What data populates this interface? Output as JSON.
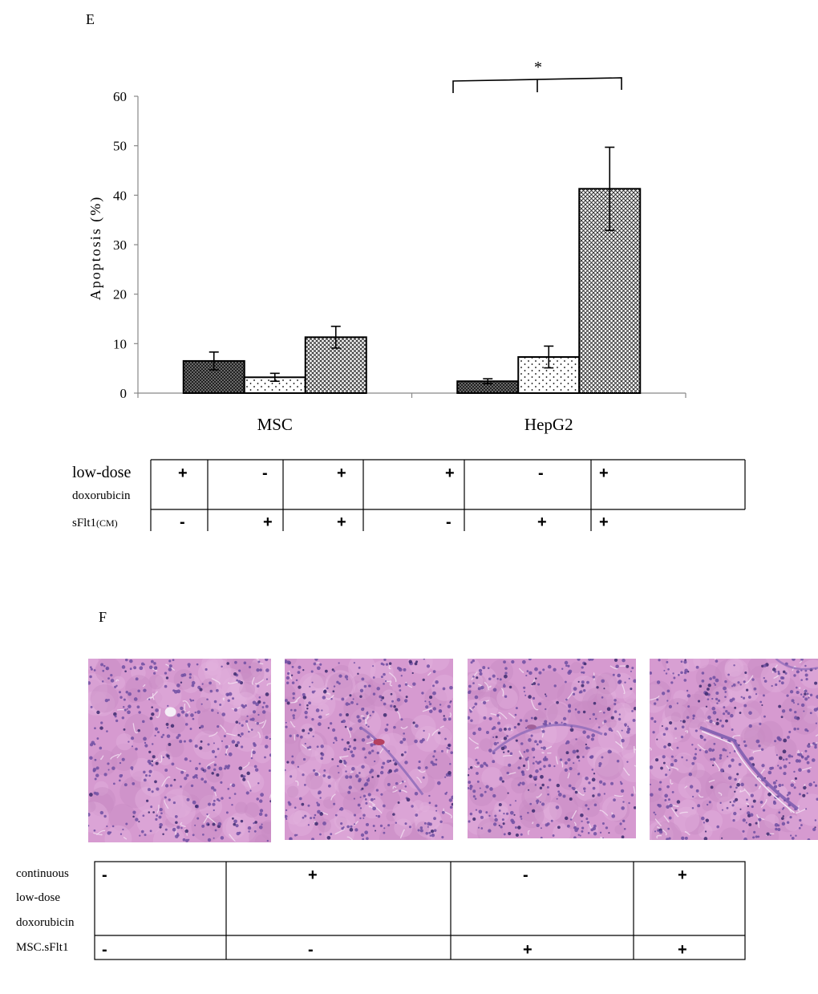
{
  "panel_e": {
    "label": "E",
    "significance_mark": "*",
    "table": {
      "row1_label_line1": "low-dose",
      "row1_label_line2": "doxorubicin",
      "row2_label_main": "sFlt1",
      "row2_label_sub": "(CM)",
      "row1_signs": [
        "+",
        "-",
        "+",
        "+",
        "-",
        "+"
      ],
      "row2_signs": [
        "-",
        "+",
        "+",
        "-",
        "+",
        "+"
      ]
    }
  },
  "chart_data": {
    "type": "bar",
    "categories": [
      "MSC",
      "HepG2"
    ],
    "ylabel": "Apoptosis (%)",
    "ylim": [
      0,
      60
    ],
    "yticks": [
      0,
      10,
      20,
      30,
      40,
      50,
      60
    ],
    "series": [
      {
        "pattern": "dense-crosshatch",
        "values": [
          6.5,
          2.4
        ],
        "errors": [
          1.8,
          0.5
        ]
      },
      {
        "pattern": "dots",
        "values": [
          3.2,
          7.3
        ],
        "errors": [
          0.8,
          2.2
        ]
      },
      {
        "pattern": "crosshatch",
        "values": [
          11.3,
          41.3
        ],
        "errors": [
          2.2,
          8.4
        ]
      }
    ]
  },
  "panel_f": {
    "label": "F",
    "images": [
      {
        "name": "liver-histology-1",
        "vessel": "none"
      },
      {
        "name": "liver-histology-2",
        "vessel": "small"
      },
      {
        "name": "liver-histology-3",
        "vessel": "arc"
      },
      {
        "name": "liver-histology-4",
        "vessel": "long"
      }
    ],
    "table": {
      "row1_label_line1": "continuous",
      "row1_label_line2": "low-dose",
      "row1_label_line3": "doxorubicin",
      "row2_label": "MSC.sFlt1",
      "row1_signs": [
        "-",
        "+",
        "-",
        "+"
      ],
      "row2_signs": [
        "-",
        "-",
        "+",
        "+"
      ]
    }
  }
}
